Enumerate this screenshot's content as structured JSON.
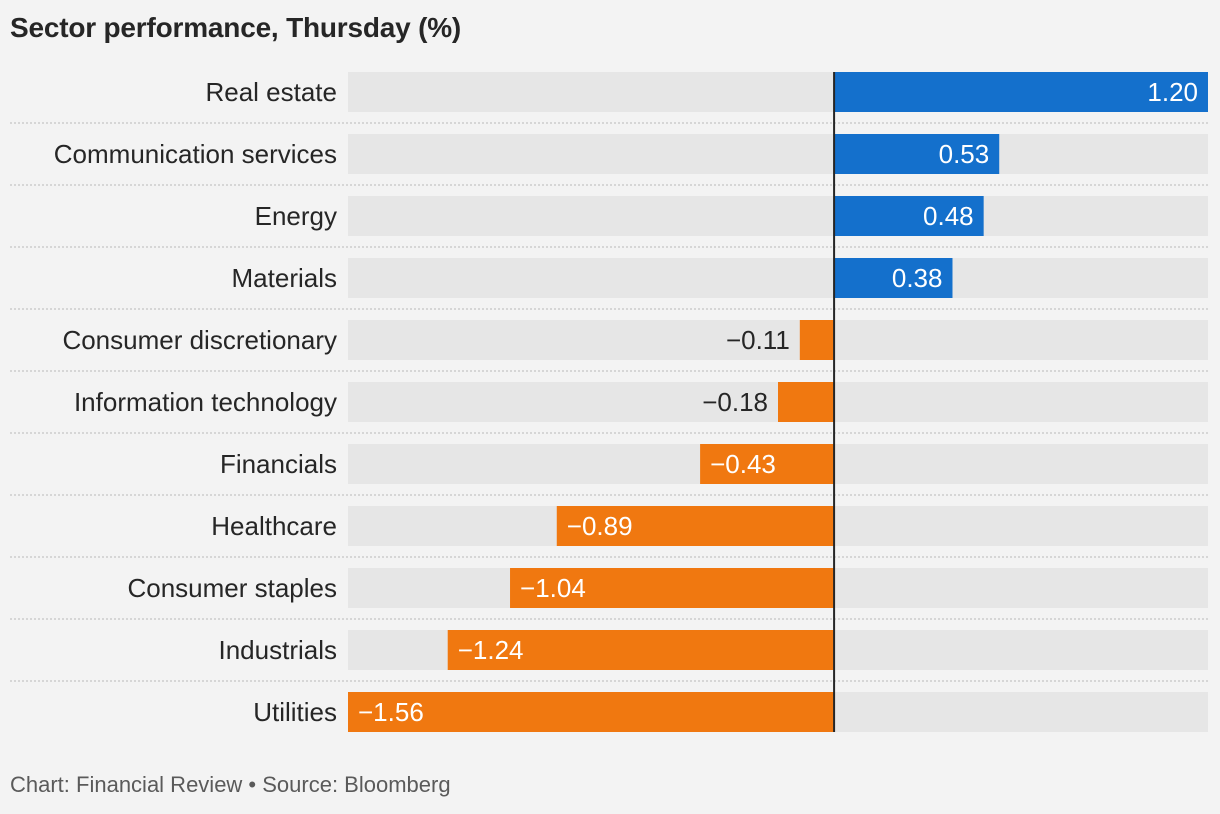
{
  "title": "Sector performance, Thursday (%)",
  "footer": "Chart: Financial Review • Source: Bloomberg",
  "colors": {
    "positive": "#1470cc",
    "negative": "#f07810",
    "track": "#e6e6e6",
    "background": "#f3f3f3",
    "axis": "#262626"
  },
  "chart_data": {
    "type": "bar",
    "orientation": "horizontal",
    "title": "Sector performance, Thursday (%)",
    "categories": [
      "Real estate",
      "Communication services",
      "Energy",
      "Materials",
      "Consumer discretionary",
      "Information technology",
      "Financials",
      "Healthcare",
      "Consumer staples",
      "Industrials",
      "Utilities"
    ],
    "values": [
      1.2,
      0.53,
      0.48,
      0.38,
      -0.11,
      -0.18,
      -0.43,
      -0.89,
      -1.04,
      -1.24,
      -1.56
    ],
    "value_labels": [
      "1.20",
      "0.53",
      "0.48",
      "0.38",
      "−0.11",
      "−0.18",
      "−0.43",
      "−0.89",
      "−1.04",
      "−1.24",
      "−1.56"
    ],
    "xlim": [
      -1.56,
      1.2
    ],
    "grid": false
  }
}
